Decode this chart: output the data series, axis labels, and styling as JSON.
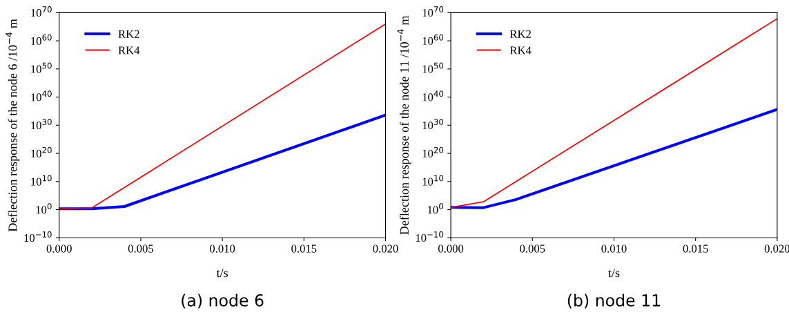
{
  "chart_data": [
    {
      "type": "line",
      "title": "(a) node 6",
      "xlabel": "t/s",
      "ylabel": "Deflection response of the node 6 /10$^{−4}$ m",
      "log": "y",
      "xlim": [
        0,
        0.02
      ],
      "xticks": [
        {
          "value": 0,
          "label": "0.000"
        },
        {
          "value": 0.005,
          "label": "0.005"
        },
        {
          "value": 0.01,
          "label": "0.010"
        },
        {
          "value": 0.015,
          "label": "0.015"
        },
        {
          "value": 0.02,
          "label": "0.020"
        }
      ],
      "ylim": [
        1e-10,
        1e+70
      ],
      "yticks": [
        {
          "value": 1e-10,
          "label": "10$^{−10}$"
        },
        {
          "value": 1,
          "label": "10$^{0}$"
        },
        {
          "value": 10000000000.0,
          "label": "10$^{10}$"
        },
        {
          "value": 1e+20,
          "label": "10$^{20}$"
        },
        {
          "value": 1e+30,
          "label": "10$^{30}$"
        },
        {
          "value": 1e+40,
          "label": "10$^{40}$"
        },
        {
          "value": 1e+50,
          "label": "10$^{50}$"
        },
        {
          "value": 1e+60,
          "label": "10$^{60}$"
        },
        {
          "value": 1e+70,
          "label": "10$^{70}$"
        }
      ],
      "legend": "top left",
      "grid": false,
      "series": [
        {
          "name": "RK2",
          "color": "#0000ff",
          "x": [
            0,
            0.002,
            0.004,
            0.02
          ],
          "values": [
            2,
            2,
            13,
            4e+33
          ]
        },
        {
          "name": "RK4",
          "color": "#ff0000",
          "x": [
            0,
            0.002,
            0.02
          ],
          "values": [
            2,
            4,
            1e+66
          ]
        }
      ]
    },
    {
      "type": "line",
      "title": "(b) node 11",
      "xlabel": "t/s",
      "ylabel": "Deflection response of the node 11 /10$^{−4}$ m",
      "log": "y",
      "xlim": [
        0,
        0.02
      ],
      "xticks": [
        {
          "value": 0,
          "label": "0.000"
        },
        {
          "value": 0.005,
          "label": "0.005"
        },
        {
          "value": 0.01,
          "label": "0.010"
        },
        {
          "value": 0.015,
          "label": "0.015"
        },
        {
          "value": 0.02,
          "label": "0.020"
        }
      ],
      "ylim": [
        1e-10,
        1e+70
      ],
      "yticks": [
        {
          "value": 1e-10,
          "label": "10$^{−10}$"
        },
        {
          "value": 1,
          "label": "10$^{0}$"
        },
        {
          "value": 10000000000.0,
          "label": "10$^{10}$"
        },
        {
          "value": 1e+20,
          "label": "10$^{20}$"
        },
        {
          "value": 1e+30,
          "label": "10$^{30}$"
        },
        {
          "value": 1e+40,
          "label": "10$^{40}$"
        },
        {
          "value": 1e+50,
          "label": "10$^{50}$"
        },
        {
          "value": 1e+60,
          "label": "10$^{60}$"
        },
        {
          "value": 1e+70,
          "label": "10$^{70}$"
        }
      ],
      "legend": "top left",
      "grid": false,
      "series": [
        {
          "name": "RK2",
          "color": "#0000ff",
          "x": [
            0,
            0.002,
            0.004,
            0.02
          ],
          "values": [
            6,
            5,
            4000.0,
            4e+35
          ]
        },
        {
          "name": "RK4",
          "color": "#ff0000",
          "x": [
            0,
            0.002,
            0.02
          ],
          "values": [
            6,
            600.0,
            7e+67
          ]
        }
      ]
    }
  ]
}
